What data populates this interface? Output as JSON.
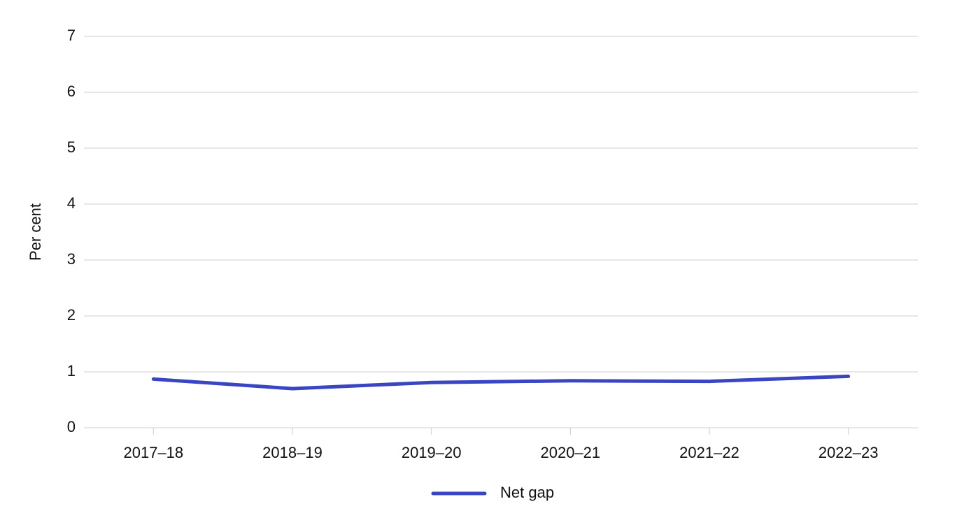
{
  "chart_data": {
    "type": "line",
    "y_label": "Per cent",
    "categories": [
      "2017–18",
      "2018–19",
      "2019–20",
      "2020–21",
      "2021–22",
      "2022–23"
    ],
    "series": [
      {
        "name": "Net gap",
        "color": "#3a45c4",
        "values": [
          0.87,
          0.7,
          0.81,
          0.84,
          0.83,
          0.92
        ]
      }
    ],
    "ylim": [
      0,
      7
    ],
    "yticks": [
      0,
      1,
      2,
      3,
      4,
      5,
      6,
      7
    ],
    "grid": true,
    "legend": "bottom"
  }
}
